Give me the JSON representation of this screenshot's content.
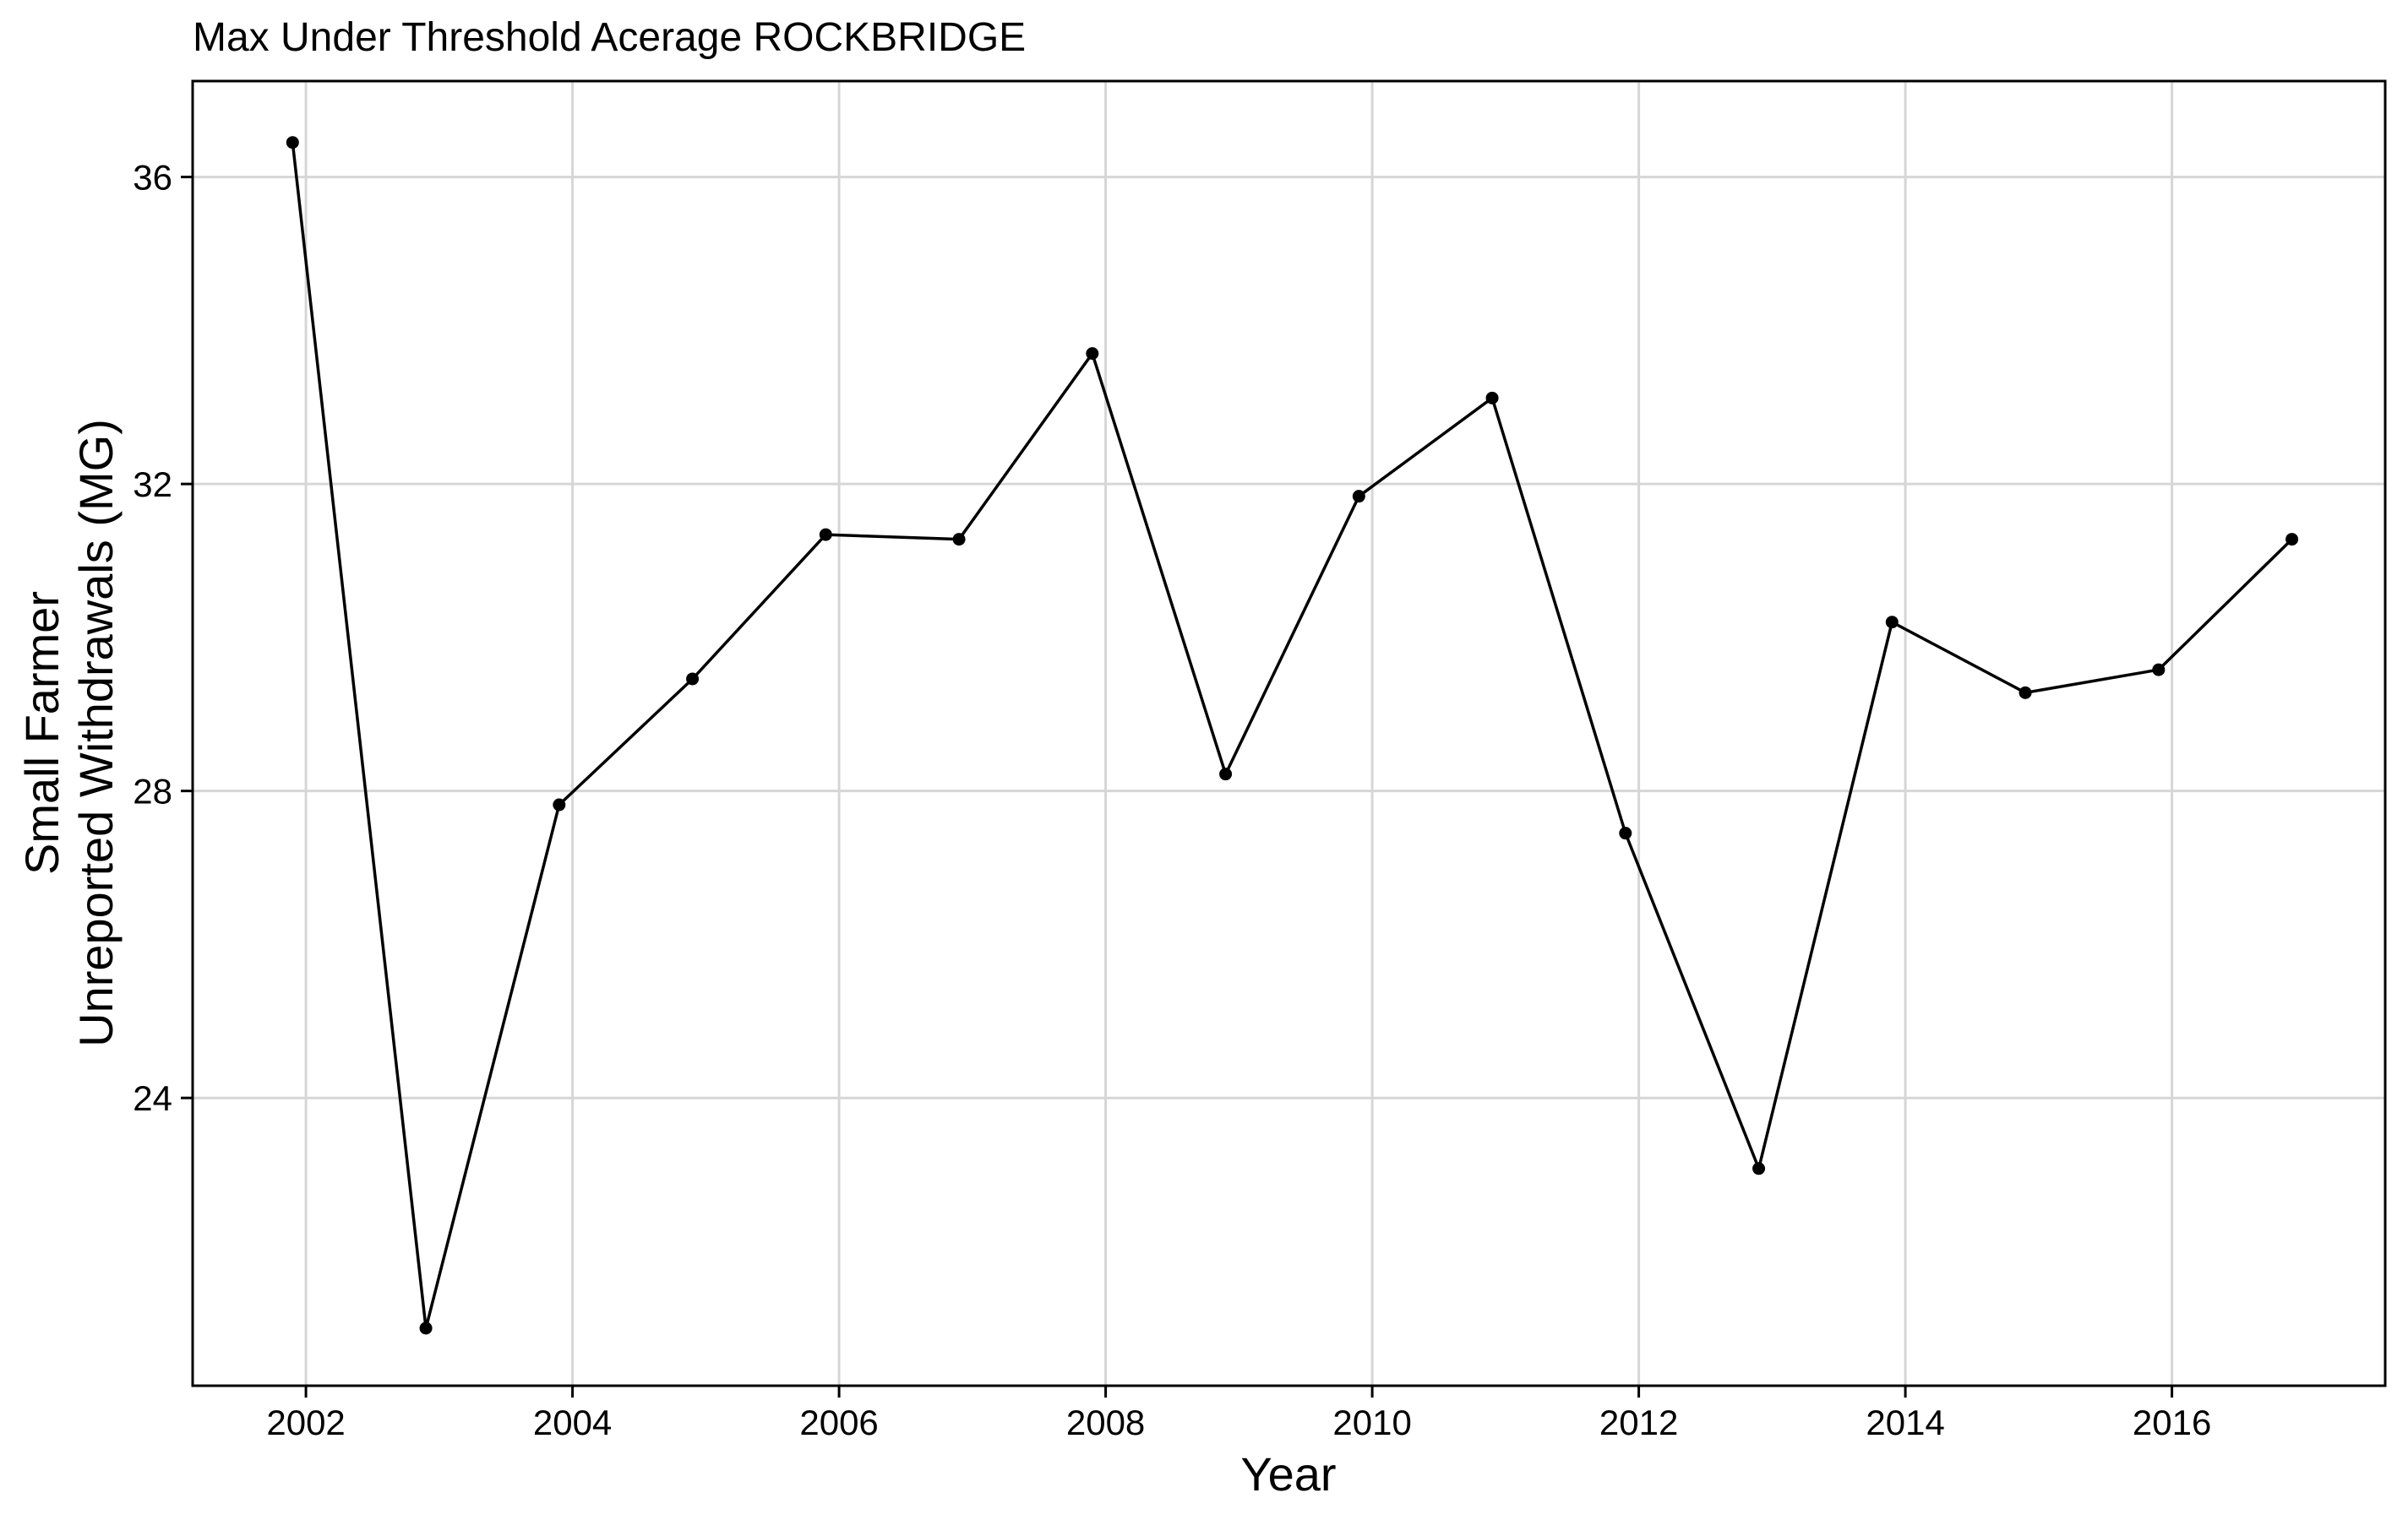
{
  "chart_data": {
    "type": "line",
    "title": "Max Under Threshold Acerage ROCKBRIDGE",
    "xlabel": "Year",
    "ylabel_lines": [
      "Small Farmer",
      "Unreported Withdrawals (MG)"
    ],
    "x": [
      2001.9,
      2002.9,
      2003.9,
      2004.9,
      2005.9,
      2006.9,
      2007.9,
      2008.9,
      2009.9,
      2010.9,
      2011.9,
      2012.9,
      2013.9,
      2014.9,
      2015.9,
      2016.9
    ],
    "values": [
      36.45,
      21.0,
      27.82,
      29.46,
      31.34,
      31.28,
      33.7,
      28.22,
      31.84,
      33.12,
      27.45,
      23.08,
      30.2,
      29.28,
      29.58,
      31.28
    ],
    "xlim": [
      2001.15,
      2017.6
    ],
    "ylim": [
      20.25,
      37.25
    ],
    "x_ticks": [
      2002,
      2004,
      2006,
      2008,
      2010,
      2012,
      2014,
      2016
    ],
    "x_tick_labels": [
      "2002",
      "2004",
      "2006",
      "2008",
      "2010",
      "2012",
      "2014",
      "2016"
    ],
    "y_ticks": [
      24,
      28,
      32,
      36
    ],
    "y_tick_labels": [
      "24",
      "28",
      "32",
      "36"
    ],
    "grid": true,
    "legend": "none",
    "colors": {
      "line": "#000000",
      "grid": "#d6d6d6",
      "background": "#ffffff"
    }
  }
}
